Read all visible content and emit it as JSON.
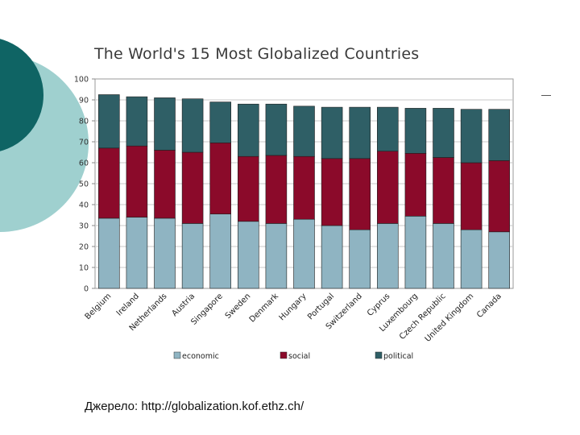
{
  "slide": {
    "source_note": "Джерело: http://globalization.kof.ethz.ch/",
    "colors": {
      "dark_teal": "#0f6464",
      "light_teal": "#9fd0cf"
    }
  },
  "chart_data": {
    "type": "bar",
    "stacked": true,
    "title": "The World's 15 Most Globalized Countries",
    "xlabel": "",
    "ylabel": "",
    "ylim": [
      0,
      100
    ],
    "yticks": [
      0,
      10,
      20,
      30,
      40,
      50,
      60,
      70,
      80,
      90,
      100
    ],
    "grid": true,
    "legend_position": "bottom",
    "categories": [
      "Belgium",
      "Ireland",
      "Netherlands",
      "Austria",
      "Singapore",
      "Sweden",
      "Denmark",
      "Hungary",
      "Portugal",
      "Switzerland",
      "Cyprus",
      "Luxembourg",
      "Czech Republic",
      "United Kingdom",
      "Canada"
    ],
    "series": [
      {
        "name": "economic",
        "color": "#8fb4c2",
        "values": [
          33.5,
          34,
          33.5,
          31,
          35.5,
          32,
          31,
          33,
          30,
          28,
          31,
          34.5,
          31,
          28,
          27
        ]
      },
      {
        "name": "social",
        "color": "#8b0a2a",
        "values": [
          33.5,
          34,
          32.5,
          34,
          34,
          31,
          32.5,
          30,
          32,
          34,
          34.5,
          30,
          31.5,
          32,
          34
        ]
      },
      {
        "name": "political",
        "color": "#2f5f66",
        "values": [
          25.5,
          23.5,
          25,
          25.5,
          19.5,
          25,
          24.5,
          24,
          24.5,
          24.5,
          21,
          21.5,
          23.5,
          25.5,
          24.5
        ]
      }
    ]
  }
}
